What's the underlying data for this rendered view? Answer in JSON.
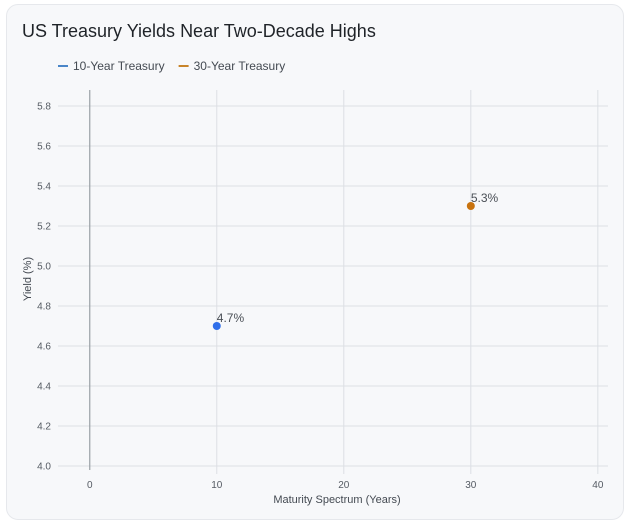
{
  "chart_data": {
    "type": "scatter",
    "title": "US Treasury Yields Near Two-Decade Highs",
    "xlabel": "Maturity Spectrum (Years)",
    "ylabel": "Yield (%)",
    "xlim": [
      -2.5,
      40.8
    ],
    "ylim": [
      3.98,
      5.88
    ],
    "x_ticks": [
      0,
      10,
      20,
      30,
      40
    ],
    "y_ticks": [
      4.0,
      4.2,
      4.4,
      4.6,
      4.8,
      5.0,
      5.2,
      5.4,
      5.6,
      5.8
    ],
    "grid": true,
    "legend_position": "top-left",
    "series": [
      {
        "name": "10-Year Treasury",
        "color": "#4a86c8",
        "point_color": "#2f6fea",
        "points": [
          {
            "x": 10,
            "y": 4.7,
            "label": "4.7%"
          }
        ]
      },
      {
        "name": "30-Year Treasury",
        "color": "#c8842a",
        "point_color": "#c8730f",
        "points": [
          {
            "x": 30,
            "y": 5.3,
            "label": "5.3%"
          }
        ]
      }
    ]
  }
}
